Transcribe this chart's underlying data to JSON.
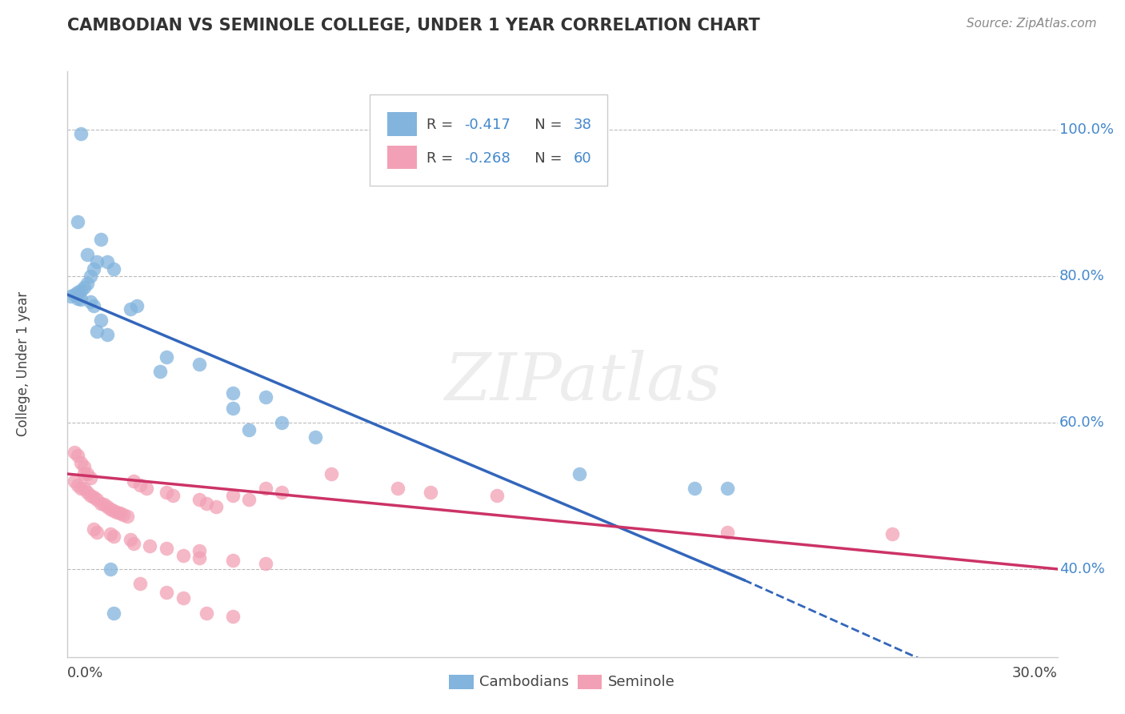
{
  "title": "CAMBODIAN VS SEMINOLE COLLEGE, UNDER 1 YEAR CORRELATION CHART",
  "source": "Source: ZipAtlas.com",
  "ylabel": "College, Under 1 year",
  "ytick_labels": [
    "100.0%",
    "80.0%",
    "60.0%",
    "40.0%"
  ],
  "ytick_values": [
    1.0,
    0.8,
    0.6,
    0.4
  ],
  "grid_lines": [
    1.0,
    0.8,
    0.6,
    0.4
  ],
  "xlim": [
    0.0,
    0.3
  ],
  "ylim": [
    0.28,
    1.08
  ],
  "blue_color": "#82B4DD",
  "pink_color": "#F2A0B5",
  "blue_line_color": "#3366BB",
  "pink_line_color": "#CC3366",
  "blue_line_solid": [
    [
      0.0,
      0.775
    ],
    [
      0.205,
      0.385
    ]
  ],
  "blue_line_dashed": [
    [
      0.205,
      0.385
    ],
    [
      0.3,
      0.193
    ]
  ],
  "pink_line": [
    [
      0.0,
      0.53
    ],
    [
      0.3,
      0.4
    ]
  ],
  "watermark_text": "ZIPatlas",
  "legend_blue_text": "R = -0.417   N = 38",
  "legend_pink_text": "R = -0.268   N = 60",
  "blue_dots": [
    [
      0.004,
      0.995
    ],
    [
      0.003,
      0.875
    ],
    [
      0.01,
      0.85
    ],
    [
      0.006,
      0.83
    ],
    [
      0.009,
      0.82
    ],
    [
      0.008,
      0.81
    ],
    [
      0.012,
      0.82
    ],
    [
      0.014,
      0.81
    ],
    [
      0.007,
      0.8
    ],
    [
      0.006,
      0.79
    ],
    [
      0.005,
      0.785
    ],
    [
      0.004,
      0.78
    ],
    [
      0.003,
      0.778
    ],
    [
      0.002,
      0.775
    ],
    [
      0.001,
      0.773
    ],
    [
      0.003,
      0.77
    ],
    [
      0.004,
      0.768
    ],
    [
      0.007,
      0.765
    ],
    [
      0.008,
      0.76
    ],
    [
      0.019,
      0.755
    ],
    [
      0.021,
      0.76
    ],
    [
      0.01,
      0.74
    ],
    [
      0.009,
      0.725
    ],
    [
      0.012,
      0.72
    ],
    [
      0.03,
      0.69
    ],
    [
      0.04,
      0.68
    ],
    [
      0.028,
      0.67
    ],
    [
      0.05,
      0.64
    ],
    [
      0.06,
      0.635
    ],
    [
      0.05,
      0.62
    ],
    [
      0.065,
      0.6
    ],
    [
      0.055,
      0.59
    ],
    [
      0.075,
      0.58
    ],
    [
      0.155,
      0.53
    ],
    [
      0.19,
      0.51
    ],
    [
      0.2,
      0.51
    ],
    [
      0.013,
      0.4
    ],
    [
      0.014,
      0.34
    ]
  ],
  "pink_dots": [
    [
      0.002,
      0.56
    ],
    [
      0.003,
      0.555
    ],
    [
      0.004,
      0.545
    ],
    [
      0.005,
      0.54
    ],
    [
      0.005,
      0.53
    ],
    [
      0.006,
      0.53
    ],
    [
      0.007,
      0.525
    ],
    [
      0.002,
      0.52
    ],
    [
      0.003,
      0.515
    ],
    [
      0.004,
      0.51
    ],
    [
      0.005,
      0.51
    ],
    [
      0.006,
      0.505
    ],
    [
      0.007,
      0.5
    ],
    [
      0.008,
      0.498
    ],
    [
      0.009,
      0.495
    ],
    [
      0.01,
      0.49
    ],
    [
      0.011,
      0.488
    ],
    [
      0.012,
      0.485
    ],
    [
      0.013,
      0.482
    ],
    [
      0.014,
      0.48
    ],
    [
      0.015,
      0.478
    ],
    [
      0.016,
      0.476
    ],
    [
      0.017,
      0.474
    ],
    [
      0.018,
      0.472
    ],
    [
      0.02,
      0.52
    ],
    [
      0.022,
      0.515
    ],
    [
      0.024,
      0.51
    ],
    [
      0.03,
      0.505
    ],
    [
      0.032,
      0.5
    ],
    [
      0.04,
      0.495
    ],
    [
      0.042,
      0.49
    ],
    [
      0.045,
      0.485
    ],
    [
      0.05,
      0.5
    ],
    [
      0.055,
      0.495
    ],
    [
      0.06,
      0.51
    ],
    [
      0.065,
      0.505
    ],
    [
      0.08,
      0.53
    ],
    [
      0.1,
      0.51
    ],
    [
      0.11,
      0.505
    ],
    [
      0.13,
      0.5
    ],
    [
      0.008,
      0.455
    ],
    [
      0.009,
      0.45
    ],
    [
      0.013,
      0.448
    ],
    [
      0.014,
      0.445
    ],
    [
      0.019,
      0.44
    ],
    [
      0.02,
      0.435
    ],
    [
      0.025,
      0.432
    ],
    [
      0.03,
      0.428
    ],
    [
      0.04,
      0.425
    ],
    [
      0.035,
      0.418
    ],
    [
      0.04,
      0.415
    ],
    [
      0.05,
      0.412
    ],
    [
      0.06,
      0.408
    ],
    [
      0.022,
      0.38
    ],
    [
      0.03,
      0.368
    ],
    [
      0.035,
      0.36
    ],
    [
      0.2,
      0.45
    ],
    [
      0.25,
      0.448
    ],
    [
      0.042,
      0.34
    ],
    [
      0.05,
      0.335
    ]
  ]
}
